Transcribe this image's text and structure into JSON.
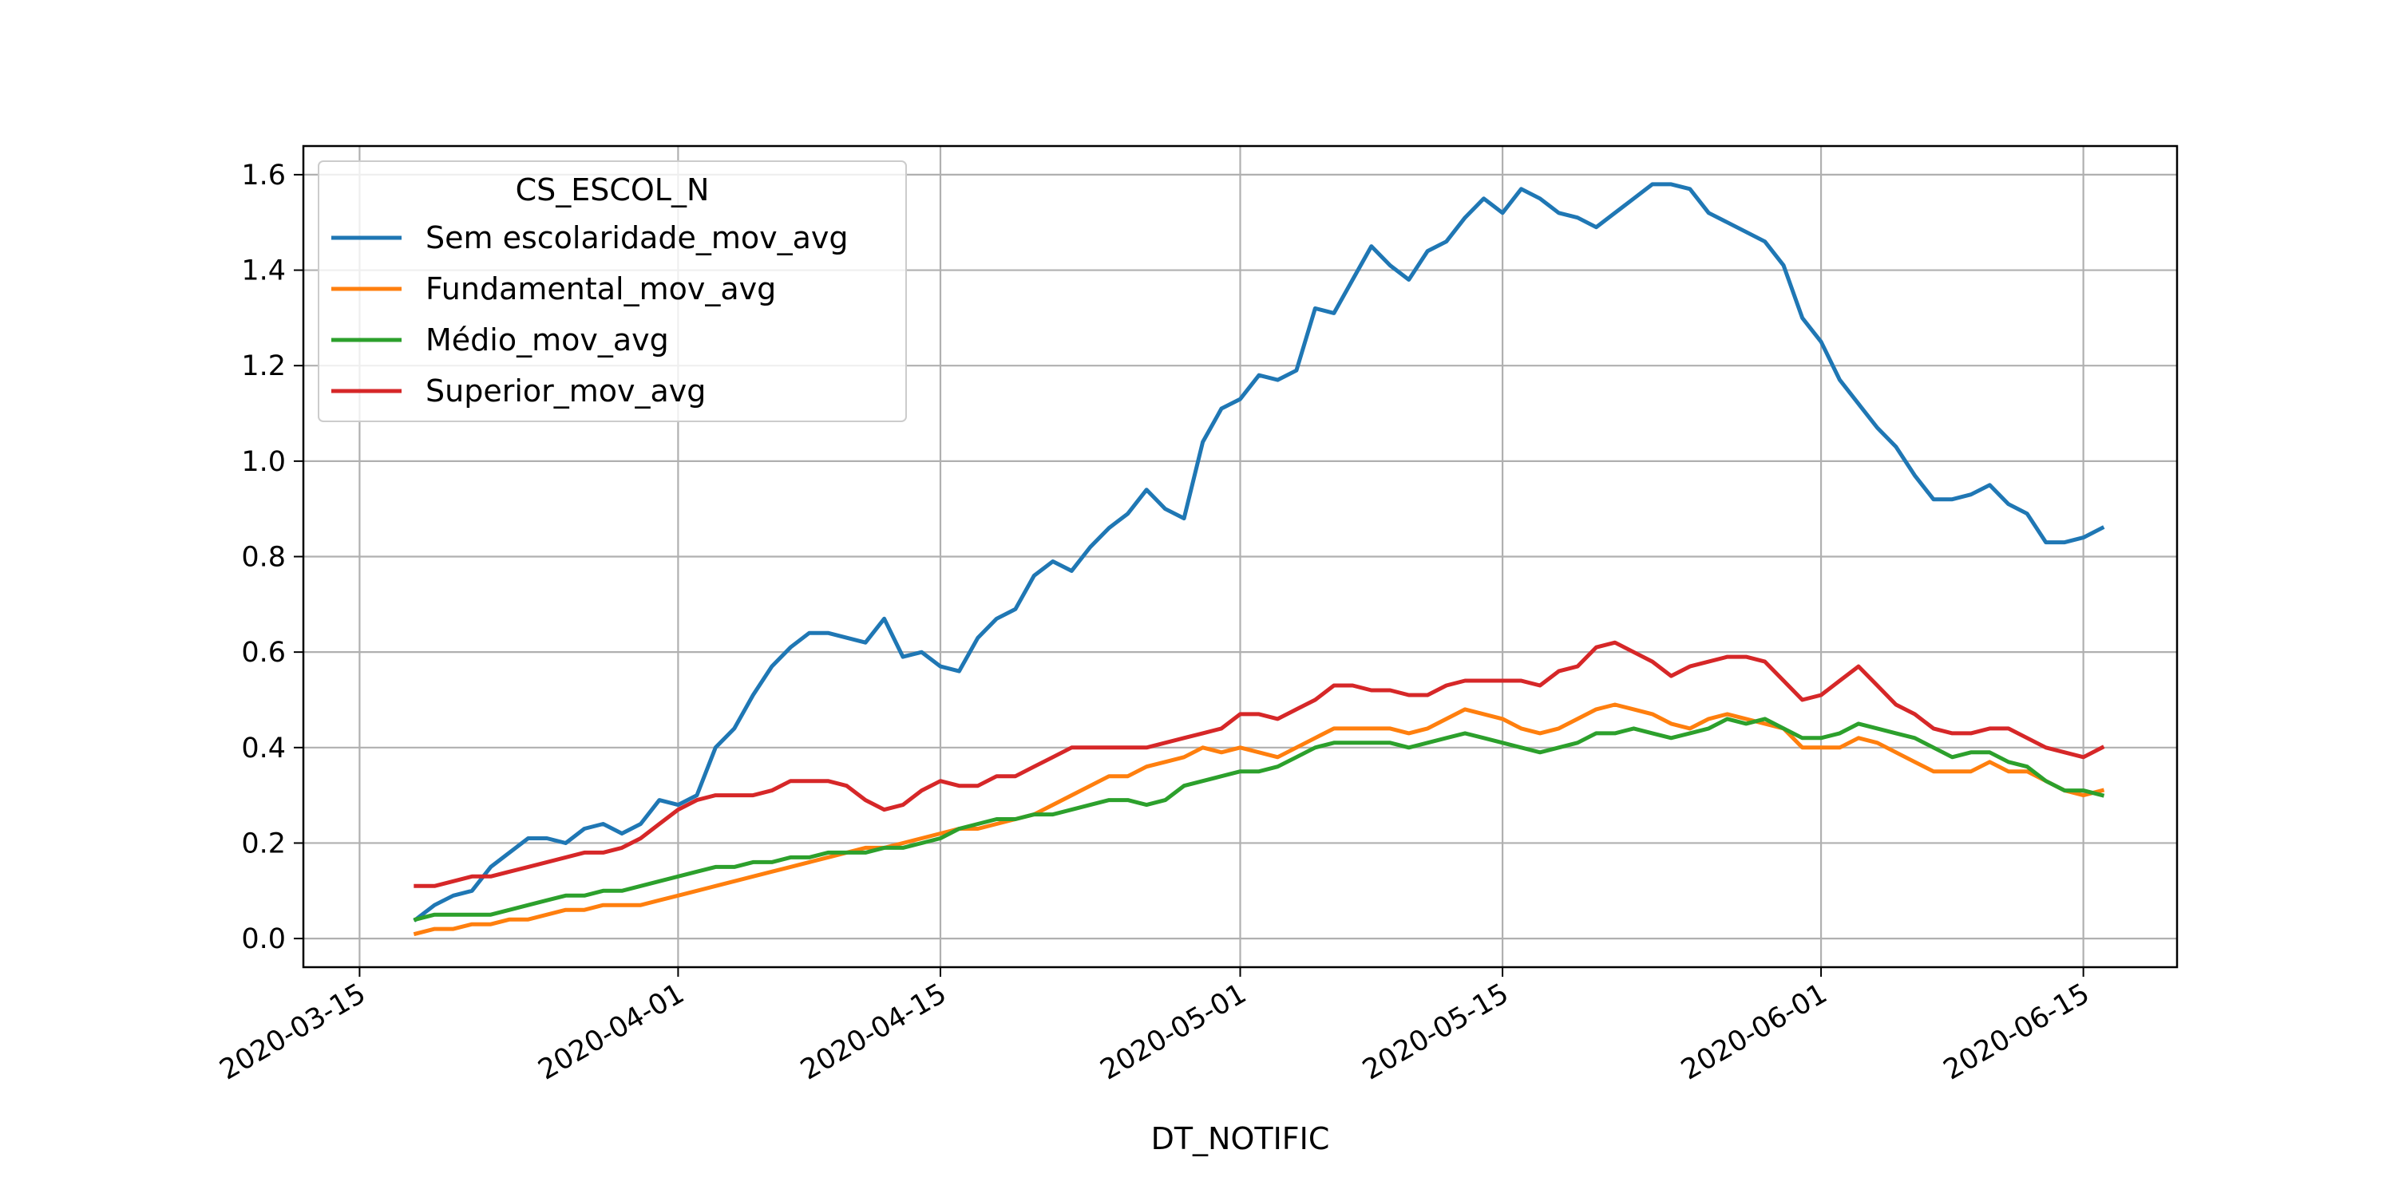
{
  "chart_data": {
    "type": "line",
    "title": "",
    "xlabel": "DT_NOTIFIC",
    "ylabel": "",
    "xlim": [
      "2020-03-12",
      "2020-06-20"
    ],
    "ylim": [
      -0.06,
      1.66
    ],
    "x_ticks": [
      "2020-03-15",
      "2020-04-01",
      "2020-04-15",
      "2020-05-01",
      "2020-05-15",
      "2020-06-01",
      "2020-06-15"
    ],
    "y_ticks": [
      "0.0",
      "0.2",
      "0.4",
      "0.6",
      "0.8",
      "1.0",
      "1.2",
      "1.4",
      "1.6"
    ],
    "grid": true,
    "legend": {
      "title": "CS_ESCOL_N",
      "placement": "top-left"
    },
    "x_start": "2020-03-18",
    "x_step_days": 1,
    "series": [
      {
        "name": "Sem escolaridade_mov_avg",
        "color": "#1f77b4",
        "values": [
          0.04,
          0.07,
          0.09,
          0.1,
          0.15,
          0.18,
          0.21,
          0.21,
          0.2,
          0.23,
          0.24,
          0.22,
          0.24,
          0.29,
          0.28,
          0.3,
          0.4,
          0.44,
          0.51,
          0.57,
          0.61,
          0.64,
          0.64,
          0.63,
          0.62,
          0.67,
          0.59,
          0.6,
          0.57,
          0.56,
          0.63,
          0.67,
          0.69,
          0.76,
          0.79,
          0.77,
          0.82,
          0.86,
          0.89,
          0.94,
          0.9,
          0.88,
          1.04,
          1.11,
          1.13,
          1.18,
          1.17,
          1.19,
          1.32,
          1.31,
          1.38,
          1.45,
          1.41,
          1.38,
          1.44,
          1.46,
          1.51,
          1.55,
          1.52,
          1.57,
          1.55,
          1.52,
          1.51,
          1.49,
          1.52,
          1.55,
          1.58,
          1.58,
          1.57,
          1.52,
          1.5,
          1.48,
          1.46,
          1.41,
          1.3,
          1.25,
          1.17,
          1.12,
          1.07,
          1.03,
          0.97,
          0.92,
          0.92,
          0.93,
          0.95,
          0.91,
          0.89,
          0.83,
          0.83,
          0.84,
          0.86
        ]
      },
      {
        "name": "Fundamental_mov_avg",
        "color": "#ff7f0e",
        "values": [
          0.01,
          0.02,
          0.02,
          0.03,
          0.03,
          0.04,
          0.04,
          0.05,
          0.06,
          0.06,
          0.07,
          0.07,
          0.07,
          0.08,
          0.09,
          0.1,
          0.11,
          0.12,
          0.13,
          0.14,
          0.15,
          0.16,
          0.17,
          0.18,
          0.19,
          0.19,
          0.2,
          0.21,
          0.22,
          0.23,
          0.23,
          0.24,
          0.25,
          0.26,
          0.28,
          0.3,
          0.32,
          0.34,
          0.34,
          0.36,
          0.37,
          0.38,
          0.4,
          0.39,
          0.4,
          0.39,
          0.38,
          0.4,
          0.42,
          0.44,
          0.44,
          0.44,
          0.44,
          0.43,
          0.44,
          0.46,
          0.48,
          0.47,
          0.46,
          0.44,
          0.43,
          0.44,
          0.46,
          0.48,
          0.49,
          0.48,
          0.47,
          0.45,
          0.44,
          0.46,
          0.47,
          0.46,
          0.45,
          0.44,
          0.4,
          0.4,
          0.4,
          0.42,
          0.41,
          0.39,
          0.37,
          0.35,
          0.35,
          0.35,
          0.37,
          0.35,
          0.35,
          0.33,
          0.31,
          0.3,
          0.31
        ]
      },
      {
        "name": "Médio_mov_avg",
        "color": "#2ca02c",
        "values": [
          0.04,
          0.05,
          0.05,
          0.05,
          0.05,
          0.06,
          0.07,
          0.08,
          0.09,
          0.09,
          0.1,
          0.1,
          0.11,
          0.12,
          0.13,
          0.14,
          0.15,
          0.15,
          0.16,
          0.16,
          0.17,
          0.17,
          0.18,
          0.18,
          0.18,
          0.19,
          0.19,
          0.2,
          0.21,
          0.23,
          0.24,
          0.25,
          0.25,
          0.26,
          0.26,
          0.27,
          0.28,
          0.29,
          0.29,
          0.28,
          0.29,
          0.32,
          0.33,
          0.34,
          0.35,
          0.35,
          0.36,
          0.38,
          0.4,
          0.41,
          0.41,
          0.41,
          0.41,
          0.4,
          0.41,
          0.42,
          0.43,
          0.42,
          0.41,
          0.4,
          0.39,
          0.4,
          0.41,
          0.43,
          0.43,
          0.44,
          0.43,
          0.42,
          0.43,
          0.44,
          0.46,
          0.45,
          0.46,
          0.44,
          0.42,
          0.42,
          0.43,
          0.45,
          0.44,
          0.43,
          0.42,
          0.4,
          0.38,
          0.39,
          0.39,
          0.37,
          0.36,
          0.33,
          0.31,
          0.31,
          0.3
        ]
      },
      {
        "name": "Superior_mov_avg",
        "color": "#d62728",
        "values": [
          0.11,
          0.11,
          0.12,
          0.13,
          0.13,
          0.14,
          0.15,
          0.16,
          0.17,
          0.18,
          0.18,
          0.19,
          0.21,
          0.24,
          0.27,
          0.29,
          0.3,
          0.3,
          0.3,
          0.31,
          0.33,
          0.33,
          0.33,
          0.32,
          0.29,
          0.27,
          0.28,
          0.31,
          0.33,
          0.32,
          0.32,
          0.34,
          0.34,
          0.36,
          0.38,
          0.4,
          0.4,
          0.4,
          0.4,
          0.4,
          0.41,
          0.42,
          0.43,
          0.44,
          0.47,
          0.47,
          0.46,
          0.48,
          0.5,
          0.53,
          0.53,
          0.52,
          0.52,
          0.51,
          0.51,
          0.53,
          0.54,
          0.54,
          0.54,
          0.54,
          0.53,
          0.56,
          0.57,
          0.61,
          0.62,
          0.6,
          0.58,
          0.55,
          0.57,
          0.58,
          0.59,
          0.59,
          0.58,
          0.54,
          0.5,
          0.51,
          0.54,
          0.57,
          0.53,
          0.49,
          0.47,
          0.44,
          0.43,
          0.43,
          0.44,
          0.44,
          0.42,
          0.4,
          0.39,
          0.38,
          0.4
        ]
      }
    ]
  }
}
